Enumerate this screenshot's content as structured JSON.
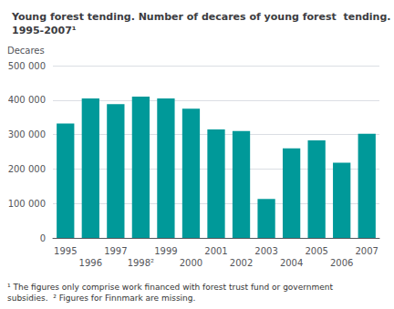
{
  "chart_data": {
    "type": "bar",
    "title": "Young forest tending. Number of decares of young forest  tending.\n1995-2007¹",
    "y_label": "Decares",
    "footnote": "¹ The figures only comprise work financed with forest trust fund or government\nsubsidies.  ² Figures for Finnmark are missing.",
    "categories": [
      "1995",
      "1996",
      "1997",
      "1998²",
      "1999",
      "2000",
      "2001",
      "2002",
      "2003",
      "2004",
      "2005",
      "2006",
      "2007"
    ],
    "values": [
      332000,
      405000,
      388000,
      410000,
      405000,
      375000,
      315000,
      310000,
      113000,
      260000,
      283000,
      218000,
      302000
    ],
    "color": "#009999",
    "ylim": [
      0,
      500000
    ],
    "yticks": [
      0,
      {
        "value": 100000,
        "label": "100 000"
      },
      {
        "value": 200000,
        "label": "200 000"
      },
      {
        "value": 300000,
        "label": "300 000"
      },
      {
        "value": 400000,
        "label": "400 000"
      },
      {
        "value": 500000,
        "label": "500 000"
      }
    ],
    "grid": true
  }
}
